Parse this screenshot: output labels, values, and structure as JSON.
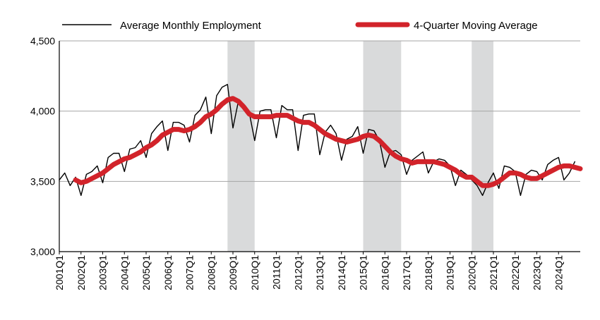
{
  "chart_data": {
    "type": "line",
    "title": "",
    "xlabel": "",
    "ylabel": "",
    "ylim": [
      3000,
      4500
    ],
    "yticks": [
      "3,000",
      "3,500",
      "4,000",
      "4,500"
    ],
    "ytick_values": [
      3000,
      3500,
      4000,
      4500
    ],
    "grid": "horizontal",
    "legend": "top",
    "x_labels": [
      "2001Q1",
      "2002Q1",
      "2003Q1",
      "2004Q1",
      "2005Q1",
      "2006Q1",
      "2007Q1",
      "2008Q1",
      "2009Q1",
      "2010Q1",
      "2011Q1",
      "2012Q1",
      "2013Q1",
      "2014Q1",
      "2015Q1",
      "2016Q1",
      "2017Q1",
      "2018Q1",
      "2019Q1",
      "2020Q1",
      "2021Q1",
      "2022Q1",
      "2023Q1",
      "2024Q1"
    ],
    "recessions": [
      {
        "start": 2008.75,
        "end": 2010.0
      },
      {
        "start": 2015.0,
        "end": 2016.75
      },
      {
        "start": 2020.0,
        "end": 2021.0
      }
    ],
    "series": [
      {
        "name": "Average Monthly Employment",
        "color": "#000000",
        "x_start": 2001.0,
        "x_step": 0.25,
        "values": [
          3510,
          3560,
          3470,
          3530,
          3400,
          3550,
          3570,
          3610,
          3490,
          3670,
          3700,
          3700,
          3570,
          3730,
          3740,
          3790,
          3670,
          3840,
          3890,
          3930,
          3720,
          3920,
          3920,
          3900,
          3780,
          3970,
          4010,
          4100,
          3840,
          4110,
          4170,
          4190,
          3880,
          4070,
          4050,
          3990,
          3790,
          4000,
          4010,
          4010,
          3810,
          4040,
          4010,
          4010,
          3720,
          3970,
          3980,
          3980,
          3690,
          3850,
          3900,
          3840,
          3650,
          3800,
          3820,
          3890,
          3700,
          3870,
          3860,
          3790,
          3600,
          3710,
          3720,
          3690,
          3550,
          3650,
          3680,
          3710,
          3560,
          3640,
          3660,
          3650,
          3610,
          3470,
          3580,
          3550,
          3510,
          3470,
          3400,
          3490,
          3560,
          3450,
          3610,
          3600,
          3570,
          3400,
          3550,
          3580,
          3570,
          3510,
          3620,
          3650,
          3670,
          3510,
          3560,
          3640
        ]
      },
      {
        "name": "4-Quarter Moving Average",
        "color": "#d2232a",
        "x_start": 2001.75,
        "x_step": 0.25,
        "values": [
          3510,
          3490,
          3500,
          3520,
          3540,
          3560,
          3590,
          3620,
          3640,
          3660,
          3670,
          3690,
          3710,
          3740,
          3760,
          3790,
          3830,
          3850,
          3870,
          3870,
          3860,
          3870,
          3890,
          3920,
          3960,
          3980,
          4010,
          4050,
          4080,
          4090,
          4070,
          4030,
          3980,
          3960,
          3960,
          3960,
          3960,
          3970,
          3970,
          3970,
          3950,
          3930,
          3920,
          3920,
          3900,
          3870,
          3840,
          3820,
          3800,
          3790,
          3780,
          3790,
          3800,
          3820,
          3830,
          3820,
          3790,
          3750,
          3710,
          3680,
          3660,
          3650,
          3630,
          3640,
          3640,
          3640,
          3640,
          3630,
          3620,
          3600,
          3580,
          3550,
          3530,
          3530,
          3500,
          3470,
          3470,
          3480,
          3500,
          3530,
          3560,
          3560,
          3550,
          3530,
          3520,
          3520,
          3540,
          3560,
          3580,
          3600,
          3610,
          3610,
          3600,
          3590
        ]
      }
    ]
  }
}
